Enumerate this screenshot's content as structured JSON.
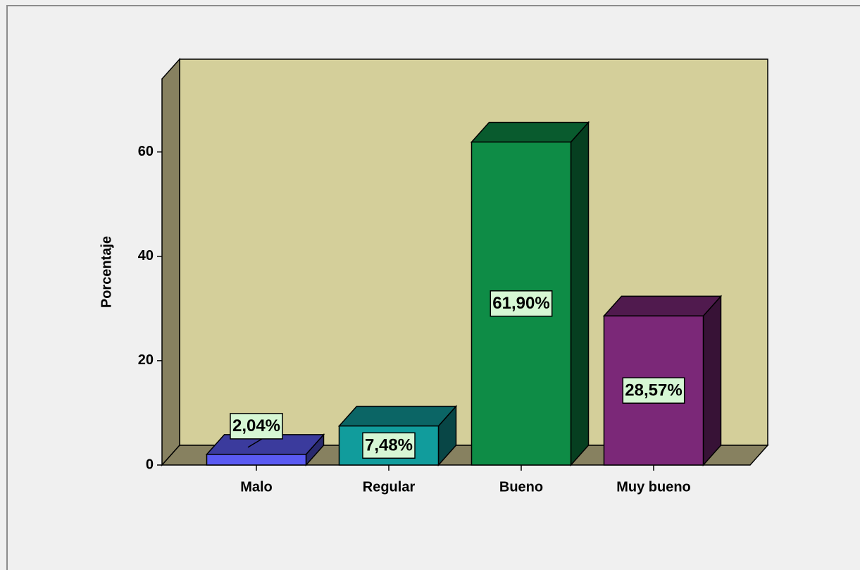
{
  "chart_data": {
    "type": "bar3d",
    "ylabel": "Porcentaje",
    "categories": [
      "Malo",
      "Regular",
      "Bueno",
      "Muy bueno"
    ],
    "values": [
      2.04,
      7.48,
      61.9,
      28.57
    ],
    "value_labels": [
      "2,04%",
      "7,48%",
      "61,90%",
      "28,57%"
    ],
    "colors": [
      "#5a5af2",
      "#119c9c",
      "#0e8c46",
      "#7b2878"
    ],
    "ylim": [
      0,
      74
    ],
    "yticks": [
      0,
      20,
      40,
      60
    ]
  }
}
